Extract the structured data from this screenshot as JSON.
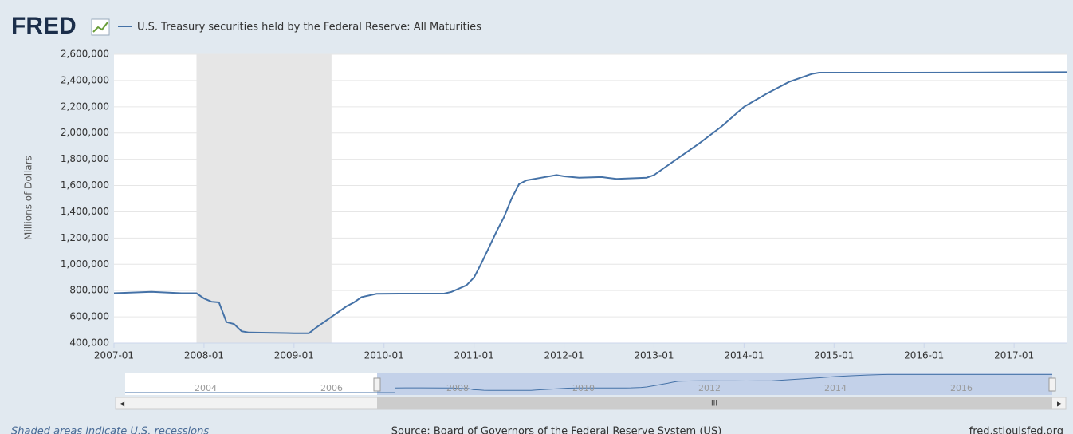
{
  "logo": "FRED",
  "chart_data": {
    "type": "line",
    "y_label": "Millions of Dollars",
    "series": [
      {
        "name": "U.S. Treasury securities held by the Federal Reserve: All Maturities",
        "color": "#4572a7",
        "x": [
          "2007-01",
          "2007-06",
          "2007-10",
          "2007-12",
          "2008-01",
          "2008-02",
          "2008-03",
          "2008-04",
          "2008-05",
          "2008-06",
          "2008-07",
          "2008-12",
          "2009-01",
          "2009-03",
          "2009-04",
          "2009-06",
          "2009-08",
          "2009-09",
          "2009-10",
          "2009-12",
          "2010-03",
          "2010-09",
          "2010-10",
          "2010-12",
          "2011-01",
          "2011-02",
          "2011-03",
          "2011-04",
          "2011-05",
          "2011-06",
          "2011-07",
          "2011-08",
          "2011-10",
          "2011-12",
          "2012-01",
          "2012-03",
          "2012-06",
          "2012-08",
          "2012-10",
          "2012-12",
          "2013-01",
          "2013-04",
          "2013-07",
          "2013-10",
          "2014-01",
          "2014-04",
          "2014-07",
          "2014-10",
          "2014-11",
          "2015-06",
          "2016-06",
          "2017-08"
        ],
        "values": [
          780000,
          790000,
          780000,
          780000,
          740000,
          715000,
          710000,
          560000,
          545000,
          490000,
          480000,
          476000,
          475000,
          475000,
          520000,
          600000,
          680000,
          710000,
          750000,
          775000,
          777000,
          777000,
          790000,
          840000,
          900000,
          1010000,
          1130000,
          1250000,
          1360000,
          1500000,
          1610000,
          1640000,
          1660000,
          1680000,
          1670000,
          1660000,
          1665000,
          1650000,
          1655000,
          1660000,
          1680000,
          1800000,
          1920000,
          2050000,
          2200000,
          2300000,
          2390000,
          2450000,
          2460000,
          2460000,
          2461000,
          2464000
        ]
      }
    ],
    "recessions": [
      [
        "2007-12",
        "2009-06"
      ]
    ],
    "xlim": [
      "2007-01",
      "2017-08"
    ],
    "xticks": [
      "2007-01",
      "2008-01",
      "2009-01",
      "2010-01",
      "2011-01",
      "2012-01",
      "2013-01",
      "2014-01",
      "2015-01",
      "2016-01",
      "2017-01"
    ],
    "ylim": [
      400000,
      2600000
    ],
    "yticks": [
      {
        "value": 400000,
        "label": "400,000"
      },
      {
        "value": 600000,
        "label": "600,000"
      },
      {
        "value": 800000,
        "label": "800,000"
      },
      {
        "value": 1000000,
        "label": "1,000,000"
      },
      {
        "value": 1200000,
        "label": "1,200,000"
      },
      {
        "value": 1400000,
        "label": "1,400,000"
      },
      {
        "value": 1600000,
        "label": "1,600,000"
      },
      {
        "value": 1800000,
        "label": "1,800,000"
      },
      {
        "value": 2000000,
        "label": "2,000,000"
      },
      {
        "value": 2200000,
        "label": "2,200,000"
      },
      {
        "value": 2400000,
        "label": "2,400,000"
      },
      {
        "value": 2600000,
        "label": "2,600,000"
      }
    ],
    "grid": true,
    "navigator_labels": [
      "2004",
      "2006",
      "2008",
      "2010",
      "2012",
      "2014",
      "2016"
    ],
    "navigator_scroll_label": "III"
  },
  "footer": {
    "note": "Shaded areas indicate U.S. recessions",
    "source": "Source: Board of Governors of the Federal Reserve System (US)",
    "site": "fred.stlouisfed.org"
  }
}
